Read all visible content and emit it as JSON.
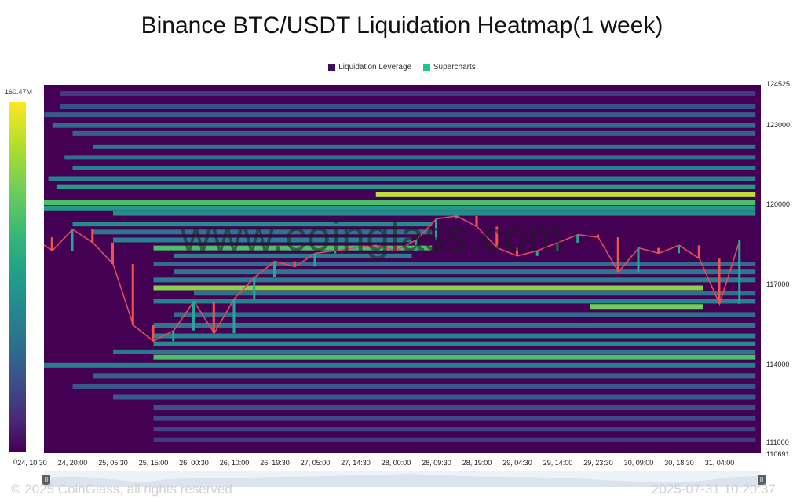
{
  "chart_data": {
    "type": "heatmap",
    "title": "Binance BTC/USDT Liquidation Heatmap(1 week)",
    "legend": [
      {
        "name": "Liquidation Leverage",
        "color": "#3b0f5c"
      },
      {
        "name": "Supercharts",
        "color": "#22c58a"
      }
    ],
    "legend_placement": "top-center",
    "colorbar": {
      "max_label": "160.47M",
      "min_label": "0",
      "colormap": "viridis"
    },
    "y_axis": {
      "side": "right",
      "ylim": [
        110691,
        124525
      ],
      "ticks": [
        "124525",
        "123000",
        "120000",
        "117000",
        "114000",
        "111000",
        "110691"
      ]
    },
    "x_axis": {
      "ticks": [
        "24, 10:30",
        "24, 20:00",
        "25, 05:30",
        "25, 15:00",
        "26, 00:30",
        "26, 10:00",
        "26, 19:30",
        "27, 05:00",
        "27, 14:30",
        "28, 00:00",
        "28, 09:30",
        "28, 19:00",
        "29, 04:30",
        "29, 14:00",
        "29, 23:30",
        "30, 09:00",
        "30, 18:30",
        "31, 04:00"
      ]
    },
    "price_series": {
      "name": "BTC/USDT",
      "x": [
        0,
        0.5,
        1,
        1.5,
        2,
        2.5,
        3,
        3.5,
        4,
        4.5,
        5,
        5.5,
        6,
        6.5,
        7,
        7.5,
        8,
        8.5,
        9,
        9.5,
        10,
        10.5,
        11,
        11.5,
        12,
        12.5,
        13,
        13.5,
        14,
        14.5,
        15,
        15.5,
        16,
        16.5,
        17,
        17.5
      ],
      "values": [
        118800,
        118300,
        119100,
        118600,
        117800,
        115500,
        114900,
        115300,
        116400,
        115200,
        116500,
        117300,
        117900,
        117700,
        118200,
        118300,
        118400,
        118500,
        118300,
        118700,
        119500,
        119600,
        119200,
        118400,
        118100,
        118300,
        118600,
        118900,
        118800,
        117500,
        118400,
        118200,
        118500,
        118000,
        116300,
        118700
      ]
    },
    "liquidation_bands": [
      {
        "price": 124200,
        "start": 0.7,
        "end": 17.5,
        "intensity": 0.2
      },
      {
        "price": 123700,
        "start": 0.7,
        "end": 17.5,
        "intensity": 0.28
      },
      {
        "price": 123400,
        "start": 0.3,
        "end": 17.5,
        "intensity": 0.32
      },
      {
        "price": 123000,
        "start": 0.5,
        "end": 17.5,
        "intensity": 0.38
      },
      {
        "price": 122700,
        "start": 1.0,
        "end": 17.5,
        "intensity": 0.35
      },
      {
        "price": 122200,
        "start": 1.5,
        "end": 17.5,
        "intensity": 0.45
      },
      {
        "price": 121800,
        "start": 0.8,
        "end": 17.5,
        "intensity": 0.42
      },
      {
        "price": 121400,
        "start": 1.0,
        "end": 17.5,
        "intensity": 0.5
      },
      {
        "price": 121000,
        "start": 0.4,
        "end": 17.5,
        "intensity": 0.5
      },
      {
        "price": 120700,
        "start": 0.6,
        "end": 17.5,
        "intensity": 0.62
      },
      {
        "price": 120400,
        "start": 8.5,
        "end": 17.5,
        "intensity": 0.95
      },
      {
        "price": 120100,
        "start": 0.2,
        "end": 17.5,
        "intensity": 0.8
      },
      {
        "price": 119900,
        "start": 0.0,
        "end": 17.5,
        "intensity": 0.6
      },
      {
        "price": 119700,
        "start": 2.0,
        "end": 17.5,
        "intensity": 0.55
      },
      {
        "price": 119300,
        "start": 1.0,
        "end": 9.5,
        "intensity": 0.55
      },
      {
        "price": 119000,
        "start": 1.5,
        "end": 9.5,
        "intensity": 0.45
      },
      {
        "price": 118700,
        "start": 2.0,
        "end": 9.0,
        "intensity": 0.5
      },
      {
        "price": 118400,
        "start": 3.0,
        "end": 9.5,
        "intensity": 0.8
      },
      {
        "price": 118100,
        "start": 3.5,
        "end": 9.0,
        "intensity": 0.48
      },
      {
        "price": 117800,
        "start": 3.0,
        "end": 17.5,
        "intensity": 0.4
      },
      {
        "price": 117500,
        "start": 3.5,
        "end": 17.5,
        "intensity": 0.45
      },
      {
        "price": 117200,
        "start": 3.0,
        "end": 17.5,
        "intensity": 0.48
      },
      {
        "price": 116900,
        "start": 3.0,
        "end": 16.2,
        "intensity": 0.9
      },
      {
        "price": 116700,
        "start": 4.0,
        "end": 17.5,
        "intensity": 0.42
      },
      {
        "price": 116400,
        "start": 3.0,
        "end": 17.5,
        "intensity": 0.5
      },
      {
        "price": 116200,
        "start": 13.8,
        "end": 16.2,
        "intensity": 0.88
      },
      {
        "price": 115900,
        "start": 3.5,
        "end": 17.5,
        "intensity": 0.4
      },
      {
        "price": 115500,
        "start": 3.0,
        "end": 17.5,
        "intensity": 0.45
      },
      {
        "price": 115100,
        "start": 3.0,
        "end": 17.5,
        "intensity": 0.5
      },
      {
        "price": 114800,
        "start": 3.0,
        "end": 17.5,
        "intensity": 0.55
      },
      {
        "price": 114500,
        "start": 2.0,
        "end": 17.5,
        "intensity": 0.45
      },
      {
        "price": 114300,
        "start": 3.0,
        "end": 17.5,
        "intensity": 0.8
      },
      {
        "price": 114000,
        "start": 0.0,
        "end": 17.5,
        "intensity": 0.48
      },
      {
        "price": 113600,
        "start": 1.5,
        "end": 17.5,
        "intensity": 0.35
      },
      {
        "price": 113200,
        "start": 1.0,
        "end": 17.5,
        "intensity": 0.3
      },
      {
        "price": 112800,
        "start": 2.0,
        "end": 17.5,
        "intensity": 0.32
      },
      {
        "price": 112400,
        "start": 3.0,
        "end": 17.5,
        "intensity": 0.28
      },
      {
        "price": 112000,
        "start": 3.0,
        "end": 17.5,
        "intensity": 0.25
      },
      {
        "price": 111600,
        "start": 3.0,
        "end": 17.5,
        "intensity": 0.22
      },
      {
        "price": 111200,
        "start": 3.0,
        "end": 17.5,
        "intensity": 0.2
      }
    ]
  },
  "watermark": "www.coinglass.com",
  "footer": {
    "copyright": "© 2025 CoinGlass, all rights reserved",
    "timestamp": "2025-07-31 10:20:37"
  },
  "navigator": {
    "left_handle": "II",
    "right_handle": "II"
  }
}
